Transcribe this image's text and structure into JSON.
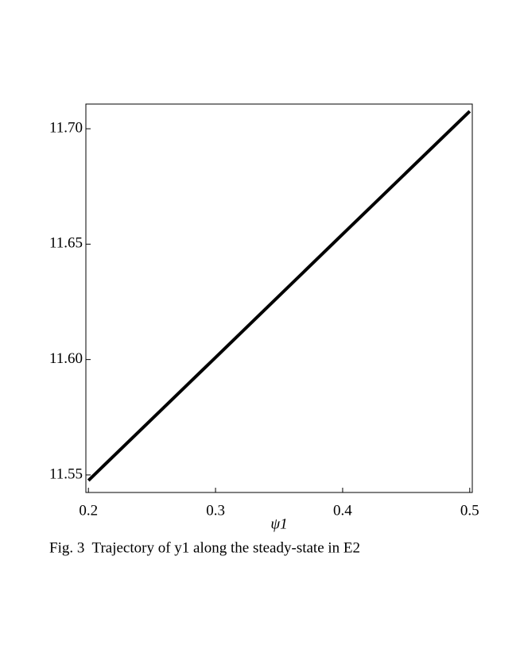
{
  "chart_data": {
    "type": "line",
    "caption": "Fig. 3  Trajectory of y1 along the steady-state in E2",
    "xlabel": "ψ1",
    "x": [
      0.2,
      0.3,
      0.4,
      0.5
    ],
    "values": [
      11.5476,
      11.6009,
      11.6543,
      11.7076
    ],
    "color": "#000000",
    "xlim": [
      0.198,
      0.502
    ],
    "xticks": [
      0.2,
      0.3,
      0.4,
      0.5
    ],
    "ylim": [
      11.5424,
      11.7107
    ],
    "yticks": [
      11.55,
      {
        "value": 11.6,
        "label": "11.60"
      },
      11.65,
      {
        "value": 11.7,
        "label": "11.70"
      }
    ],
    "grid": false
  }
}
